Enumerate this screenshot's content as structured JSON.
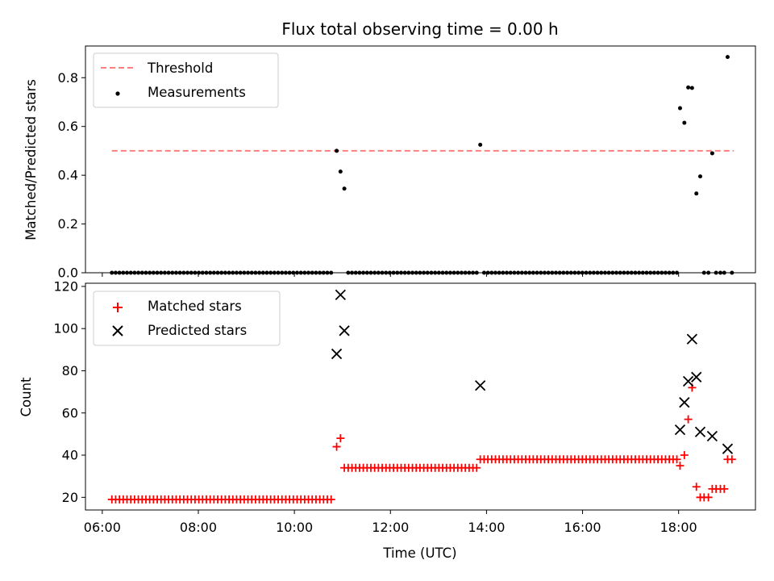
{
  "chart_data": [
    {
      "type": "scatter",
      "panel": "top",
      "title": "Flux total observing time = 0.00 h",
      "xlabel": "",
      "ylabel": "Matched/Predicted stars",
      "xlim": [
        5.65,
        19.6
      ],
      "ylim": [
        0,
        0.93
      ],
      "yticks": [
        0.0,
        0.2,
        0.4,
        0.6,
        0.8
      ],
      "ytick_labels": [
        "0.0",
        "0.2",
        "0.4",
        "0.6",
        "0.8"
      ],
      "xticks": [
        6,
        8,
        10,
        12,
        14,
        16,
        18
      ],
      "grid": false,
      "legend": "top-left",
      "threshold": {
        "name": "Threshold",
        "value": 0.5,
        "x_range": [
          6.2,
          19.15
        ],
        "color": "#ff7f7f"
      },
      "series": [
        {
          "name": "Measurements",
          "color": "#000000",
          "points": [
            [
              10.88,
              0.5
            ],
            [
              10.96,
              0.415
            ],
            [
              11.04,
              0.345
            ],
            [
              13.87,
              0.525
            ],
            [
              18.03,
              0.675
            ],
            [
              18.12,
              0.615
            ],
            [
              18.2,
              0.76
            ],
            [
              18.28,
              0.758
            ],
            [
              18.37,
              0.325
            ],
            [
              18.45,
              0.395
            ],
            [
              18.7,
              0.49
            ],
            [
              19.02,
              0.885
            ],
            [
              18.53,
              0.0
            ],
            [
              18.62,
              0.0
            ],
            [
              18.78,
              0.0
            ],
            [
              18.87,
              0.0
            ],
            [
              18.95,
              0.0
            ],
            [
              19.11,
              0.0
            ]
          ],
          "zero_runs": [
            {
              "start": 6.2,
              "end": 10.82,
              "step": 0.0787
            },
            {
              "start": 11.12,
              "end": 13.8,
              "step": 0.0787
            },
            {
              "start": 13.95,
              "end": 17.97,
              "step": 0.0787
            }
          ]
        }
      ]
    },
    {
      "type": "scatter",
      "panel": "bottom",
      "title": "",
      "xlabel": "Time (UTC)",
      "ylabel": "Count",
      "xlim": [
        5.65,
        19.6
      ],
      "ylim": [
        14,
        121.5
      ],
      "yticks": [
        20,
        40,
        60,
        80,
        100,
        120
      ],
      "ytick_labels": [
        "20",
        "40",
        "60",
        "80",
        "100",
        "120"
      ],
      "xticks": [
        6,
        8,
        10,
        12,
        14,
        16,
        18
      ],
      "xtick_labels": [
        "06:00",
        "08:00",
        "10:00",
        "12:00",
        "14:00",
        "16:00",
        "18:00"
      ],
      "grid": false,
      "legend": "top-left",
      "series": [
        {
          "name": "Matched stars",
          "marker": "plus",
          "color": "#ff0000",
          "runs": [
            {
              "start": 6.2,
              "end": 10.82,
              "step": 0.0787,
              "value": 19
            },
            {
              "start": 11.12,
              "end": 13.8,
              "step": 0.0787,
              "value": 34
            },
            {
              "start": 13.95,
              "end": 17.97,
              "step": 0.0787,
              "value": 38
            }
          ],
          "points": [
            [
              10.88,
              44
            ],
            [
              10.96,
              48
            ],
            [
              11.04,
              34
            ],
            [
              13.87,
              38
            ],
            [
              18.03,
              35
            ],
            [
              18.12,
              40
            ],
            [
              18.2,
              57
            ],
            [
              18.28,
              72
            ],
            [
              18.37,
              25
            ],
            [
              18.45,
              20
            ],
            [
              18.53,
              20
            ],
            [
              18.62,
              20
            ],
            [
              18.7,
              24
            ],
            [
              18.78,
              24
            ],
            [
              18.87,
              24
            ],
            [
              18.95,
              24
            ],
            [
              19.02,
              38
            ],
            [
              19.11,
              38
            ]
          ]
        },
        {
          "name": "Predicted stars",
          "marker": "x",
          "color": "#000000",
          "points": [
            [
              10.88,
              88
            ],
            [
              10.96,
              116
            ],
            [
              11.04,
              99
            ],
            [
              13.87,
              73
            ],
            [
              18.03,
              52
            ],
            [
              18.12,
              65
            ],
            [
              18.2,
              75
            ],
            [
              18.28,
              95
            ],
            [
              18.37,
              77
            ],
            [
              18.45,
              51
            ],
            [
              18.7,
              49
            ],
            [
              19.02,
              43
            ]
          ]
        }
      ]
    }
  ]
}
